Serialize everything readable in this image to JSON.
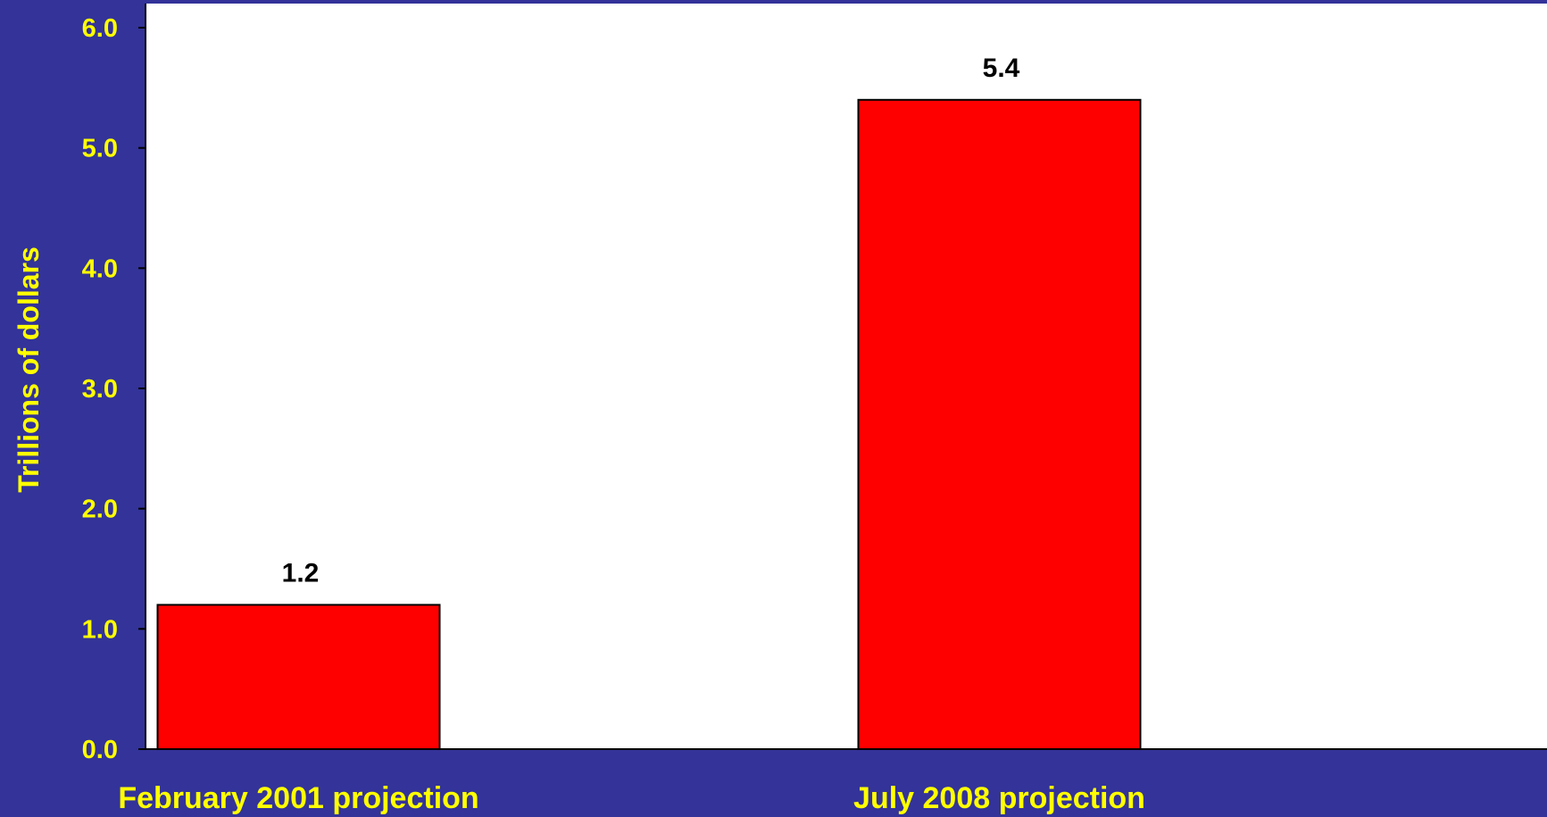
{
  "chart_data": {
    "type": "bar",
    "categories": [
      "February 2001 projection",
      "July 2008 projection"
    ],
    "values": [
      1.2,
      5.4
    ],
    "data_labels": [
      "1.2",
      "5.4"
    ],
    "title": "",
    "xlabel": "",
    "ylabel": "Trillions of dollars",
    "ylim": [
      0,
      6
    ],
    "yticks": [
      "0.0",
      "1.0",
      "2.0",
      "3.0",
      "4.0",
      "5.0",
      "6.0"
    ],
    "grid": false,
    "legend": "none"
  },
  "colors": {
    "background": "#333399",
    "plot_area": "#ffffff",
    "bar_fill": "#ff0000",
    "bar_stroke": "#000000",
    "label_text": "#ffff00",
    "axis_line": "#000000"
  }
}
